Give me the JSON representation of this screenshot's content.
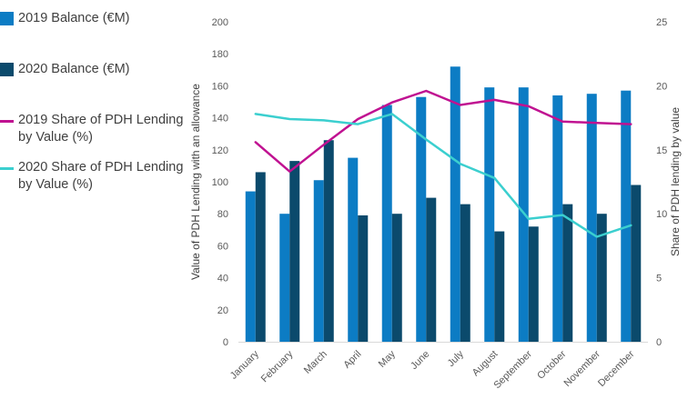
{
  "legend": {
    "items": [
      {
        "label": "2019 Balance (€M)",
        "kind": "bar",
        "color": "#0C7CC4"
      },
      {
        "label": "2020 Balance (€M)",
        "kind": "bar",
        "color": "#0B4A6C"
      },
      {
        "label": "2019 Share of PDH Lending by Value (%)",
        "kind": "line",
        "color": "#C01291"
      },
      {
        "label": "2020 Share of PDH Lending by Value (%)",
        "kind": "line",
        "color": "#3BCFCF"
      }
    ]
  },
  "chart_data": {
    "type": "bar",
    "categories": [
      "January",
      "February",
      "March",
      "April",
      "May",
      "June",
      "July",
      "August",
      "September",
      "October",
      "November",
      "December"
    ],
    "series": [
      {
        "name": "2019 Balance (€M)",
        "type": "bar",
        "axis": "left",
        "color": "#0C7CC4",
        "values": [
          94,
          80,
          101,
          115,
          148,
          153,
          172,
          159,
          159,
          154,
          155,
          157
        ]
      },
      {
        "name": "2020 Balance (€M)",
        "type": "bar",
        "axis": "left",
        "color": "#0B4A6C",
        "values": [
          106,
          113,
          126,
          79,
          80,
          90,
          86,
          69,
          72,
          86,
          80,
          98
        ]
      },
      {
        "name": "2019 Share of PDH Lending by Value (%)",
        "type": "line",
        "axis": "right",
        "color": "#C01291",
        "values": [
          15.6,
          13.3,
          15.4,
          17.4,
          18.7,
          19.6,
          18.5,
          18.9,
          18.4,
          17.2,
          17.1,
          17.0
        ]
      },
      {
        "name": "2020 Share of PDH Lending by Value (%)",
        "type": "line",
        "axis": "right",
        "color": "#3BCFCF",
        "values": [
          17.8,
          17.4,
          17.3,
          17.0,
          17.8,
          15.8,
          13.9,
          12.8,
          9.6,
          9.9,
          8.2,
          9.1
        ]
      }
    ],
    "ylabel_left": "Value of PDH Lending with an allowance",
    "ylabel_right": "Share of PDH lending by value",
    "ylim_left": [
      0,
      200
    ],
    "yticks_left": [
      "0",
      "20",
      "40",
      "60",
      "80",
      "100",
      "120",
      "140",
      "160",
      "180",
      "200"
    ],
    "ylim_right": [
      0,
      25
    ],
    "yticks_right": [
      "0",
      "5",
      "10",
      "15",
      "20",
      "25"
    ],
    "grid": false,
    "legend_position": "left"
  }
}
